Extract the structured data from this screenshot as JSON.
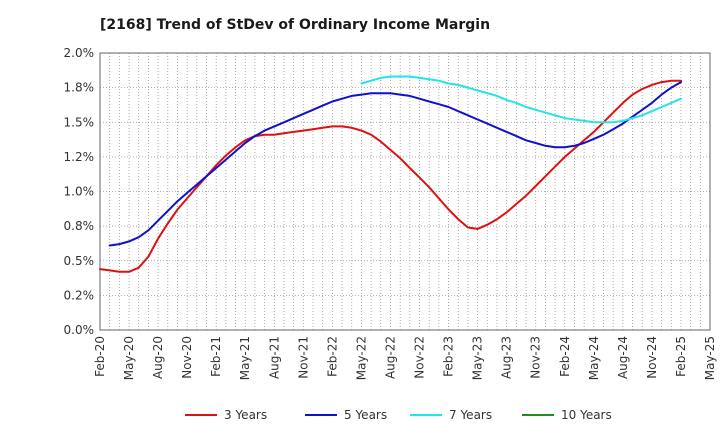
{
  "chart_data": {
    "type": "line",
    "title": "[2168]  Trend of StDev of Ordinary Income Margin",
    "xlabel": "",
    "ylabel": "",
    "x_ticks": [
      "Feb-20",
      "May-20",
      "Aug-20",
      "Nov-20",
      "Feb-21",
      "May-21",
      "Aug-21",
      "Nov-21",
      "Feb-22",
      "May-22",
      "Aug-22",
      "Nov-22",
      "Feb-23",
      "May-23",
      "Aug-23",
      "Nov-23",
      "Feb-24",
      "May-24",
      "Aug-24",
      "Nov-24",
      "Feb-25",
      "May-25"
    ],
    "y_ticks": [
      "0.0%",
      "0.2%",
      "0.5%",
      "0.8%",
      "1.0%",
      "1.2%",
      "1.5%",
      "1.8%",
      "2.0%"
    ],
    "ylim": [
      0,
      2.0
    ],
    "grid": true,
    "legend_position": "bottom",
    "series": [
      {
        "name": "3 Years",
        "color": "#dd1111",
        "points": [
          [
            "Feb-20",
            0.44
          ],
          [
            "Mar-20",
            0.43
          ],
          [
            "Apr-20",
            0.42
          ],
          [
            "May-20",
            0.42
          ],
          [
            "Jun-20",
            0.45
          ],
          [
            "Jul-20",
            0.53
          ],
          [
            "Aug-20",
            0.66
          ],
          [
            "Sep-20",
            0.77
          ],
          [
            "Oct-20",
            0.87
          ],
          [
            "Nov-20",
            0.95
          ],
          [
            "Dec-20",
            1.03
          ],
          [
            "Jan-21",
            1.11
          ],
          [
            "Feb-21",
            1.19
          ],
          [
            "Mar-21",
            1.26
          ],
          [
            "Apr-21",
            1.32
          ],
          [
            "May-21",
            1.37
          ],
          [
            "Jun-21",
            1.4
          ],
          [
            "Jul-21",
            1.41
          ],
          [
            "Aug-21",
            1.41
          ],
          [
            "Sep-21",
            1.42
          ],
          [
            "Oct-21",
            1.43
          ],
          [
            "Nov-21",
            1.44
          ],
          [
            "Dec-21",
            1.45
          ],
          [
            "Jan-22",
            1.46
          ],
          [
            "Feb-22",
            1.47
          ],
          [
            "Mar-22",
            1.47
          ],
          [
            "Apr-22",
            1.46
          ],
          [
            "May-22",
            1.44
          ],
          [
            "Jun-22",
            1.41
          ],
          [
            "Jul-22",
            1.36
          ],
          [
            "Aug-22",
            1.3
          ],
          [
            "Sep-22",
            1.24
          ],
          [
            "Oct-22",
            1.17
          ],
          [
            "Nov-22",
            1.1
          ],
          [
            "Dec-22",
            1.03
          ],
          [
            "Jan-23",
            0.95
          ],
          [
            "Feb-23",
            0.87
          ],
          [
            "Mar-23",
            0.8
          ],
          [
            "Apr-23",
            0.74
          ],
          [
            "May-23",
            0.73
          ],
          [
            "Jun-23",
            0.76
          ],
          [
            "Jul-23",
            0.8
          ],
          [
            "Aug-23",
            0.85
          ],
          [
            "Sep-23",
            0.91
          ],
          [
            "Oct-23",
            0.97
          ],
          [
            "Nov-23",
            1.04
          ],
          [
            "Dec-23",
            1.11
          ],
          [
            "Jan-24",
            1.18
          ],
          [
            "Feb-24",
            1.25
          ],
          [
            "Mar-24",
            1.31
          ],
          [
            "Apr-24",
            1.37
          ],
          [
            "May-24",
            1.43
          ],
          [
            "Jun-24",
            1.5
          ],
          [
            "Jul-24",
            1.57
          ],
          [
            "Aug-24",
            1.64
          ],
          [
            "Sep-24",
            1.7
          ],
          [
            "Oct-24",
            1.74
          ],
          [
            "Nov-24",
            1.77
          ],
          [
            "Dec-24",
            1.79
          ],
          [
            "Jan-25",
            1.8
          ],
          [
            "Feb-25",
            1.8
          ]
        ]
      },
      {
        "name": "5 Years",
        "color": "#1111cc",
        "points": [
          [
            "Mar-20",
            0.61
          ],
          [
            "Apr-20",
            0.62
          ],
          [
            "May-20",
            0.64
          ],
          [
            "Jun-20",
            0.67
          ],
          [
            "Jul-20",
            0.72
          ],
          [
            "Aug-20",
            0.79
          ],
          [
            "Sep-20",
            0.86
          ],
          [
            "Oct-20",
            0.93
          ],
          [
            "Nov-20",
            0.99
          ],
          [
            "Dec-20",
            1.05
          ],
          [
            "Jan-21",
            1.11
          ],
          [
            "Feb-21",
            1.17
          ],
          [
            "Mar-21",
            1.23
          ],
          [
            "Apr-21",
            1.29
          ],
          [
            "May-21",
            1.35
          ],
          [
            "Jun-21",
            1.4
          ],
          [
            "Jul-21",
            1.44
          ],
          [
            "Aug-21",
            1.47
          ],
          [
            "Sep-21",
            1.5
          ],
          [
            "Oct-21",
            1.53
          ],
          [
            "Nov-21",
            1.56
          ],
          [
            "Dec-21",
            1.59
          ],
          [
            "Jan-22",
            1.62
          ],
          [
            "Feb-22",
            1.65
          ],
          [
            "Mar-22",
            1.67
          ],
          [
            "Apr-22",
            1.69
          ],
          [
            "May-22",
            1.7
          ],
          [
            "Jun-22",
            1.71
          ],
          [
            "Jul-22",
            1.71
          ],
          [
            "Aug-22",
            1.71
          ],
          [
            "Sep-22",
            1.7
          ],
          [
            "Oct-22",
            1.69
          ],
          [
            "Nov-22",
            1.67
          ],
          [
            "Dec-22",
            1.65
          ],
          [
            "Jan-23",
            1.63
          ],
          [
            "Feb-23",
            1.61
          ],
          [
            "Mar-23",
            1.58
          ],
          [
            "Apr-23",
            1.55
          ],
          [
            "May-23",
            1.52
          ],
          [
            "Jun-23",
            1.49
          ],
          [
            "Jul-23",
            1.46
          ],
          [
            "Aug-23",
            1.43
          ],
          [
            "Sep-23",
            1.4
          ],
          [
            "Oct-23",
            1.37
          ],
          [
            "Nov-23",
            1.35
          ],
          [
            "Dec-23",
            1.33
          ],
          [
            "Jan-24",
            1.32
          ],
          [
            "Feb-24",
            1.32
          ],
          [
            "Mar-24",
            1.33
          ],
          [
            "Apr-24",
            1.35
          ],
          [
            "May-24",
            1.38
          ],
          [
            "Jun-24",
            1.41
          ],
          [
            "Jul-24",
            1.45
          ],
          [
            "Aug-24",
            1.49
          ],
          [
            "Sep-24",
            1.54
          ],
          [
            "Oct-24",
            1.59
          ],
          [
            "Nov-24",
            1.64
          ],
          [
            "Dec-24",
            1.7
          ],
          [
            "Jan-25",
            1.75
          ],
          [
            "Feb-25",
            1.79
          ]
        ]
      },
      {
        "name": "7 Years",
        "color": "#22e5e5",
        "points": [
          [
            "May-22",
            1.78
          ],
          [
            "Jun-22",
            1.8
          ],
          [
            "Jul-22",
            1.82
          ],
          [
            "Aug-22",
            1.83
          ],
          [
            "Sep-22",
            1.83
          ],
          [
            "Oct-22",
            1.83
          ],
          [
            "Nov-22",
            1.82
          ],
          [
            "Dec-22",
            1.81
          ],
          [
            "Jan-23",
            1.8
          ],
          [
            "Feb-23",
            1.78
          ],
          [
            "Mar-23",
            1.77
          ],
          [
            "Apr-23",
            1.75
          ],
          [
            "May-23",
            1.73
          ],
          [
            "Jun-23",
            1.71
          ],
          [
            "Jul-23",
            1.69
          ],
          [
            "Aug-23",
            1.66
          ],
          [
            "Sep-23",
            1.64
          ],
          [
            "Oct-23",
            1.61
          ],
          [
            "Nov-23",
            1.59
          ],
          [
            "Dec-23",
            1.57
          ],
          [
            "Jan-24",
            1.55
          ],
          [
            "Feb-24",
            1.53
          ],
          [
            "Mar-24",
            1.52
          ],
          [
            "Apr-24",
            1.51
          ],
          [
            "May-24",
            1.5
          ],
          [
            "Jun-24",
            1.5
          ],
          [
            "Jul-24",
            1.5
          ],
          [
            "Aug-24",
            1.51
          ],
          [
            "Sep-24",
            1.53
          ],
          [
            "Oct-24",
            1.55
          ],
          [
            "Nov-24",
            1.58
          ],
          [
            "Dec-24",
            1.61
          ],
          [
            "Jan-25",
            1.64
          ],
          [
            "Feb-25",
            1.67
          ]
        ]
      },
      {
        "name": "10 Years",
        "color": "#228b22",
        "points": []
      }
    ]
  }
}
